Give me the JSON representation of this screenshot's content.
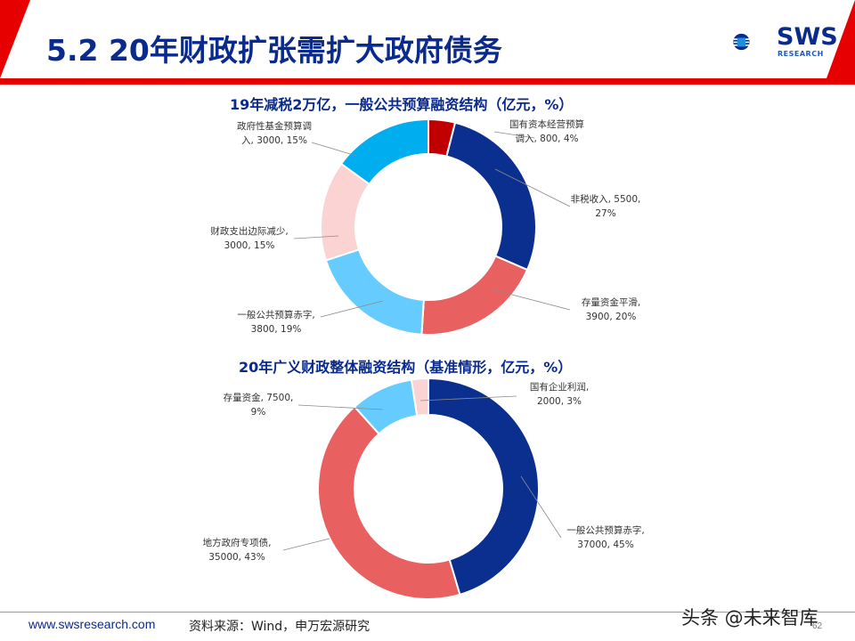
{
  "header": {
    "title": "5.2 20年财政扩张需扩大政府债务",
    "logo_text": "SWS",
    "logo_sub": "RESEARCH"
  },
  "colors": {
    "brand_blue": "#0a2a8c",
    "accent_red": "#e60000"
  },
  "chart_data": [
    {
      "type": "pie",
      "title": "19年减税2万亿，一般公共预算融资结构（亿元，%）",
      "categories": [
        "国有资本经营预算调入",
        "非税收入",
        "存量资金平滑",
        "一般公共预算赤字",
        "财政支出边际减少",
        "政府性基金预算调入"
      ],
      "values": [
        800,
        5500,
        3900,
        3800,
        3000,
        3000
      ],
      "percents": [
        4,
        27,
        20,
        19,
        15,
        15
      ],
      "colors": [
        "#c00000",
        "#0a2f8f",
        "#e86060",
        "#66ccff",
        "#fbd3d3",
        "#00aeef"
      ],
      "labels": [
        {
          "lines": [
            "国有资本经营预算",
            "调入, 800, 4%"
          ]
        },
        {
          "lines": [
            "非税收入, 5500,",
            "27%"
          ]
        },
        {
          "lines": [
            "存量资金平滑,",
            "3900, 20%"
          ]
        },
        {
          "lines": [
            "一般公共预算赤字,",
            "3800, 19%"
          ]
        },
        {
          "lines": [
            "财政支出边际减少,",
            "3000, 15%"
          ]
        },
        {
          "lines": [
            "政府性基金预算调",
            "入, 3000, 15%"
          ]
        }
      ]
    },
    {
      "type": "pie",
      "title": "20年广义财政整体融资结构（基准情形，亿元，%）",
      "categories": [
        "一般公共预算赤字",
        "地方政府专项债",
        "存量资金",
        "国有企业利润"
      ],
      "values": [
        37000,
        35000,
        7500,
        2000
      ],
      "percents": [
        45,
        43,
        9,
        3
      ],
      "colors": [
        "#0a2f8f",
        "#e86060",
        "#66ccff",
        "#fbd3d3"
      ],
      "labels": [
        {
          "lines": [
            "一般公共预算赤字,",
            "37000, 45%"
          ]
        },
        {
          "lines": [
            "地方政府专项债,",
            "35000, 43%"
          ]
        },
        {
          "lines": [
            "存量资金, 7500,",
            "9%"
          ]
        },
        {
          "lines": [
            "国有企业利润,",
            "2000, 3%"
          ]
        }
      ]
    }
  ],
  "footer": {
    "url": "www.swsresearch.com",
    "source": "资料来源：Wind，申万宏源研究",
    "watermark": "头条 @未来智库",
    "page": "62"
  }
}
